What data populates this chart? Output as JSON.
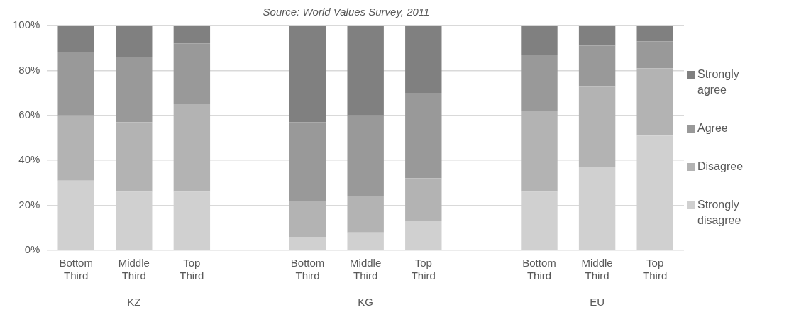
{
  "chart_data": {
    "type": "bar",
    "subtitle": "Source: World Values Survey, 2011",
    "stacked": true,
    "categories": [
      "Bottom Third",
      "Middle Third",
      "Top Third",
      null,
      "Bottom Third",
      "Middle Third",
      "Top Third",
      null,
      "Bottom Third",
      "Middle Third",
      "Top Third"
    ],
    "series": [
      {
        "name": "Strongly disagree",
        "color": "#d0d0d0",
        "values": [
          31,
          26,
          26,
          null,
          6,
          8,
          13,
          null,
          26,
          37,
          51
        ]
      },
      {
        "name": "Disagree",
        "color": "#b3b3b3",
        "values": [
          29,
          31,
          39,
          null,
          16,
          16,
          19,
          null,
          36,
          36,
          30
        ]
      },
      {
        "name": "Agree",
        "color": "#999999",
        "values": [
          28,
          29,
          27,
          null,
          35,
          36,
          38,
          null,
          25,
          18,
          12
        ]
      },
      {
        "name": "Strongly agree",
        "color": "#808080",
        "values": [
          12,
          14,
          8,
          null,
          43,
          40,
          30,
          null,
          13,
          9,
          7
        ]
      }
    ],
    "ylim": [
      0,
      100
    ],
    "yticks": [
      {
        "value": 0,
        "label": "0%"
      },
      {
        "value": 20,
        "label": "20%"
      },
      {
        "value": 40,
        "label": "40%"
      },
      {
        "value": 60,
        "label": "60%"
      },
      {
        "value": 80,
        "label": "80%"
      },
      {
        "value": 100,
        "label": "100%"
      }
    ],
    "grid": "y",
    "legend": "right",
    "annotations": [
      "KZ",
      "KG",
      "EU"
    ]
  }
}
